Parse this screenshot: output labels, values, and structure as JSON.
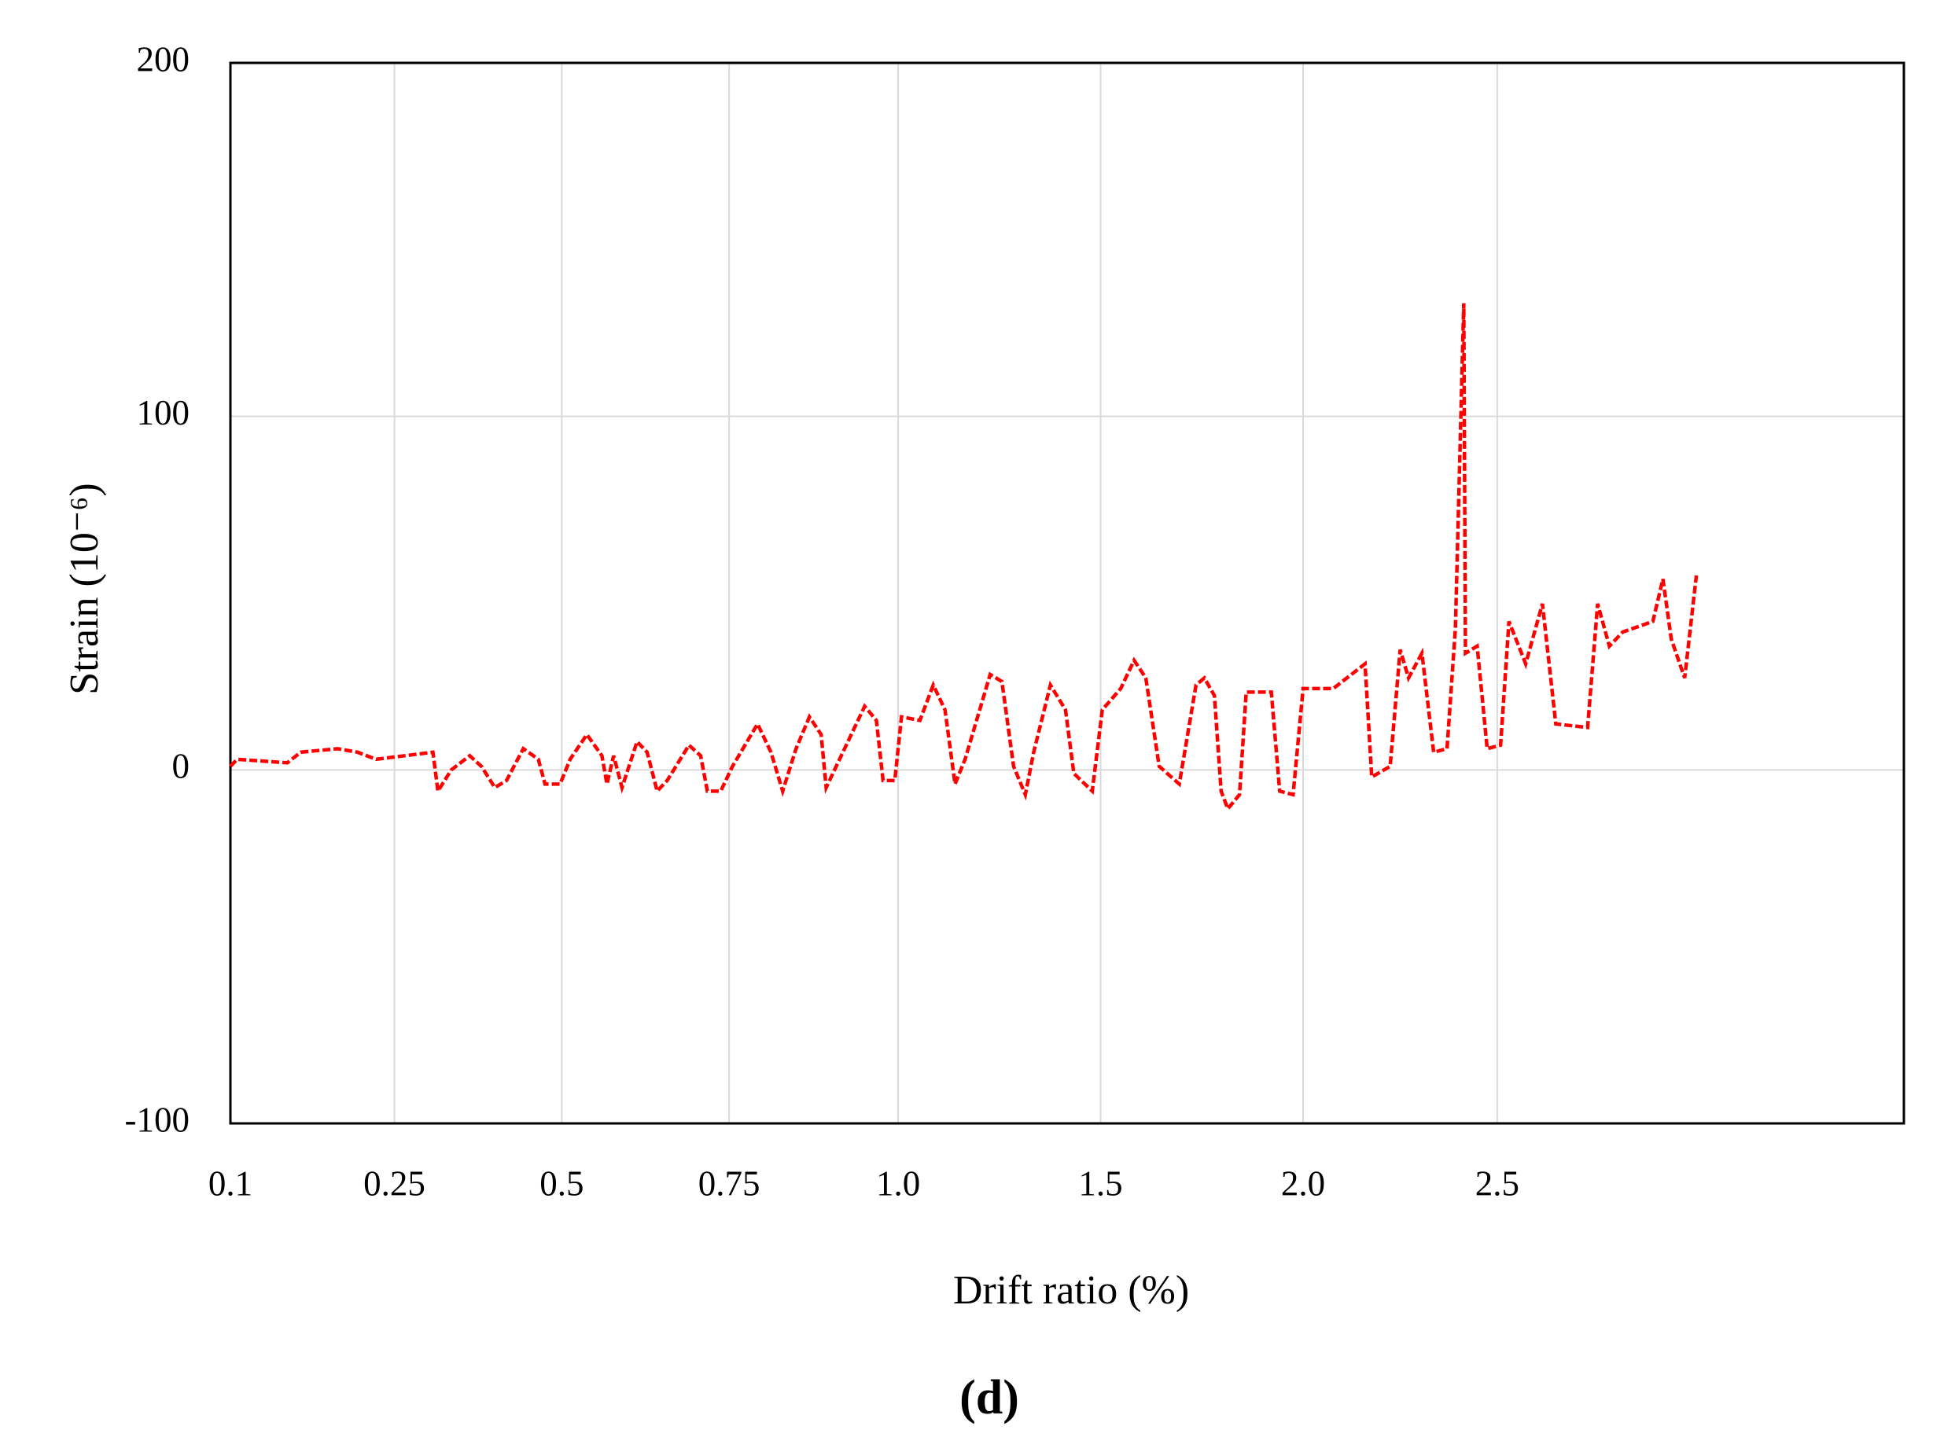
{
  "chart_data": {
    "type": "line",
    "caption": "(d)",
    "x_label": "Drift ratio (%)",
    "y_label": "Strain (10⁻⁶)",
    "xlim": [
      0,
      100
    ],
    "xticks": [
      {
        "value": 0,
        "label": "0.1"
      },
      {
        "value": 9.8,
        "label": "0.25"
      },
      {
        "value": 19.8,
        "label": "0.5"
      },
      {
        "value": 29.8,
        "label": "0.75"
      },
      {
        "value": 39.9,
        "label": "1.0"
      },
      {
        "value": 52.0,
        "label": "1.5"
      },
      {
        "value": 64.1,
        "label": "2.0"
      },
      {
        "value": 75.7,
        "label": "2.5"
      }
    ],
    "ylim": [
      -100,
      200
    ],
    "yticks": [
      -100,
      0,
      100,
      200
    ],
    "grid": true,
    "x": [
      0,
      0.4,
      3.4,
      4.2,
      6.4,
      7.6,
      8.7,
      12.1,
      12.4,
      13.2,
      14.3,
      15.0,
      15.8,
      16.5,
      17.5,
      18.4,
      18.8,
      19.7,
      20.3,
      21.3,
      22.2,
      22.5,
      22.9,
      23.4,
      24.3,
      24.9,
      25.5,
      26.1,
      27.4,
      28.1,
      28.5,
      29.3,
      30.0,
      31.5,
      32.3,
      33.0,
      33.8,
      34.6,
      35.3,
      35.6,
      36.2,
      37.9,
      38.6,
      39.0,
      39.7,
      40.1,
      41.2,
      42.0,
      42.7,
      43.3,
      43.9,
      45.4,
      46.1,
      46.8,
      47.5,
      48.0,
      49.0,
      49.9,
      50.4,
      51.5,
      52.1,
      53.2,
      54.0,
      54.7,
      55.5,
      56.7,
      57.7,
      58.2,
      58.8,
      59.2,
      59.6,
      60.3,
      60.7,
      62.2,
      62.7,
      63.5,
      64.1,
      65.9,
      67.8,
      68.2,
      69.3,
      69.9,
      70.4,
      71.2,
      71.9,
      72.7,
      73.2,
      73.7,
      73.8,
      74.5,
      75.1,
      75.9,
      76.4,
      77.4,
      78.4,
      79.2,
      81.1,
      81.7,
      82.4,
      83.2,
      85.0,
      85.6,
      86.1,
      86.9,
      87.6
    ],
    "series": [
      {
        "color": "#ff0000",
        "values": [
          1,
          3,
          2,
          5,
          6,
          5,
          3,
          5,
          -6,
          0,
          4,
          1,
          -5,
          -3,
          6,
          3,
          -4,
          -4,
          3,
          10,
          4,
          -4,
          4,
          -5,
          8,
          5,
          -6,
          -3,
          7,
          4,
          -6,
          -6,
          1,
          13,
          5,
          -6,
          6,
          15,
          10,
          -5,
          1,
          18,
          14,
          -3,
          -3,
          15,
          14,
          24,
          17,
          -4,
          3,
          27,
          25,
          1,
          -7,
          5,
          24,
          17,
          -1,
          -6,
          17,
          23,
          31,
          26,
          1,
          -4,
          24,
          26,
          21,
          -6,
          -11,
          -7,
          22,
          22,
          -6,
          -7,
          23,
          23,
          30,
          -2,
          1,
          34,
          26,
          33,
          5,
          6,
          40,
          132,
          33,
          35,
          6,
          7,
          42,
          30,
          47,
          13,
          12,
          47,
          35,
          39,
          42,
          54,
          37,
          26,
          55
        ]
      }
    ]
  }
}
